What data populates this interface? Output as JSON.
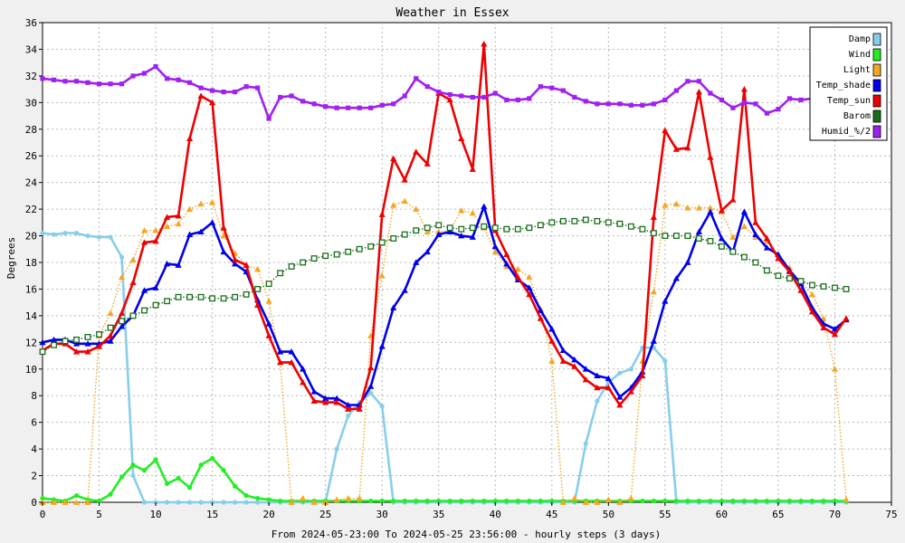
{
  "chart_data": {
    "type": "line",
    "title": "Weather in Essex",
    "ylabel": "Degrees",
    "xlabel": "From 2024-05-23:00 To 2024-05-25 23:56:00 - hourly steps (3 days)",
    "xlim": [
      0,
      75
    ],
    "ylim": [
      0,
      36
    ],
    "xticks": [
      0,
      5,
      10,
      15,
      20,
      25,
      30,
      35,
      40,
      45,
      50,
      55,
      60,
      65,
      70,
      75
    ],
    "yticks": [
      0,
      2,
      4,
      6,
      8,
      10,
      12,
      14,
      16,
      18,
      20,
      22,
      24,
      26,
      28,
      30,
      32,
      34,
      36
    ],
    "grid": true,
    "legend_position": "top-right",
    "x": [
      0,
      1,
      2,
      3,
      4,
      5,
      6,
      7,
      8,
      9,
      10,
      11,
      12,
      13,
      14,
      15,
      16,
      17,
      18,
      19,
      20,
      21,
      22,
      23,
      24,
      25,
      26,
      27,
      28,
      29,
      30,
      31,
      32,
      33,
      34,
      35,
      36,
      37,
      38,
      39,
      40,
      41,
      42,
      43,
      44,
      45,
      46,
      47,
      48,
      49,
      50,
      51,
      52,
      53,
      54,
      55,
      56,
      57,
      58,
      59,
      60,
      61,
      62,
      63,
      64,
      65,
      66,
      67,
      68,
      69,
      70,
      71
    ],
    "series": [
      {
        "name": "Damp",
        "color": "#87ceeb",
        "style": "solid-circle",
        "values": [
          20.2,
          20.1,
          20.2,
          20.2,
          20,
          19.9,
          19.9,
          18.4,
          2,
          0,
          0,
          0,
          0,
          0,
          0,
          0,
          0,
          0,
          0,
          0,
          0,
          0,
          0,
          0,
          0,
          0,
          4,
          6.5,
          7.5,
          8.2,
          7.2,
          0,
          0,
          0,
          0,
          0,
          0,
          0,
          0,
          0,
          0,
          0,
          0,
          0,
          0,
          0,
          0,
          0,
          4.4,
          7.6,
          9,
          9.7,
          10,
          11.6,
          11.6,
          10.6,
          0,
          0,
          0,
          0,
          0,
          0,
          0,
          0,
          0,
          0,
          0,
          0,
          0,
          0,
          0,
          0
        ]
      },
      {
        "name": "Wind",
        "color": "#22ee22",
        "style": "solid-circle",
        "values": [
          0.3,
          0.2,
          0.1,
          0.5,
          0.2,
          0.1,
          0.6,
          1.9,
          2.8,
          2.4,
          3.2,
          1.4,
          1.8,
          1.1,
          2.8,
          3.3,
          2.4,
          1.2,
          0.5,
          0.3,
          0.2,
          0.1,
          0.1,
          0.1,
          0.1,
          0.1,
          0.1,
          0.1,
          0.1,
          0.1,
          0.1,
          0.1,
          0.1,
          0.1,
          0.1,
          0.1,
          0.1,
          0.1,
          0.1,
          0.1,
          0.1,
          0.1,
          0.1,
          0.1,
          0.1,
          0.1,
          0.1,
          0.1,
          0.1,
          0.1,
          0.1,
          0.1,
          0.1,
          0.1,
          0.1,
          0.1,
          0.1,
          0.1,
          0.1,
          0.1,
          0.1,
          0.1,
          0.1,
          0.1,
          0.1,
          0.1,
          0.1,
          0.1,
          0.1,
          0.1,
          0.1,
          0.1
        ]
      },
      {
        "name": "Light",
        "color": "#f5a623",
        "style": "dotted-triangle",
        "values": [
          0,
          0,
          0,
          0,
          0,
          12.5,
          14.2,
          16.9,
          18.2,
          20.4,
          20.4,
          20.7,
          20.9,
          22,
          22.4,
          22.5,
          20,
          18.7,
          17.8,
          17.5,
          15.1,
          10.5,
          0,
          0.3,
          0,
          0,
          0.2,
          0.3,
          0.3,
          12.5,
          17,
          22.3,
          22.6,
          22,
          20.3,
          20.3,
          20.4,
          21.9,
          21.7,
          20.6,
          18.8,
          17.7,
          17.5,
          16.9,
          14.5,
          10.6,
          0,
          0.3,
          0,
          0,
          0.2,
          0,
          0.3,
          10.6,
          15.8,
          22.3,
          22.4,
          22.1,
          22.1,
          22.1,
          21.8,
          19.9,
          20.7,
          19.9,
          19.6,
          18.6,
          17.6,
          16.5,
          15.6,
          13.8,
          10,
          0.2
        ]
      },
      {
        "name": "Temp_shade",
        "color": "#0000ee",
        "style": "solid-triangle",
        "values": [
          12,
          12.2,
          12.2,
          11.9,
          11.9,
          11.9,
          12.1,
          13.2,
          14,
          15.9,
          16.1,
          17.9,
          17.8,
          20.1,
          20.3,
          21,
          18.8,
          17.9,
          17.3,
          15.2,
          13.4,
          11.3,
          11.3,
          10,
          8.3,
          7.8,
          7.8,
          7.3,
          7.3,
          8.7,
          11.7,
          14.6,
          15.9,
          18,
          18.8,
          20.1,
          20.3,
          20,
          19.9,
          22.2,
          19.2,
          17.9,
          16.7,
          16.1,
          14.4,
          13,
          11.4,
          10.7,
          10,
          9.5,
          9.3,
          7.9,
          8.6,
          9.8,
          12.1,
          15.1,
          16.8,
          18,
          20.3,
          21.8,
          19.8,
          18.8,
          21.8,
          20.1,
          19.1,
          18.6,
          17.4,
          16.4,
          14.6,
          13.4,
          13,
          13.7
        ]
      },
      {
        "name": "Temp_sun",
        "color": "#ee0000",
        "style": "solid-triangle",
        "values": [
          11.4,
          11.9,
          11.9,
          11.3,
          11.3,
          11.7,
          12.5,
          14.2,
          16.5,
          19.5,
          19.6,
          21.4,
          21.5,
          27.3,
          30.5,
          30,
          20.6,
          18.2,
          17.8,
          14.8,
          12.5,
          10.5,
          10.5,
          9,
          7.6,
          7.5,
          7.5,
          7,
          7,
          10.1,
          21.6,
          25.8,
          24.2,
          26.3,
          25.4,
          30.7,
          30.2,
          27.3,
          25,
          34.4,
          20.4,
          18.6,
          16.9,
          15.6,
          13.8,
          12.1,
          10.6,
          10.2,
          9.2,
          8.6,
          8.6,
          7.3,
          8.3,
          9.5,
          21.4,
          27.9,
          26.5,
          26.6,
          30.8,
          25.9,
          21.9,
          22.7,
          31,
          21,
          19.8,
          18.3,
          17.3,
          15.9,
          14.3,
          13.1,
          12.6,
          13.8
        ]
      },
      {
        "name": "Barom",
        "color": "#1a6e1a",
        "style": "dotted-square",
        "values": [
          11.3,
          11.8,
          12.1,
          12.2,
          12.4,
          12.6,
          13.1,
          13.6,
          14,
          14.4,
          14.8,
          15.1,
          15.4,
          15.4,
          15.4,
          15.3,
          15.3,
          15.4,
          15.6,
          16,
          16.4,
          17.2,
          17.7,
          18,
          18.3,
          18.5,
          18.6,
          18.8,
          19,
          19.2,
          19.5,
          19.8,
          20.1,
          20.4,
          20.6,
          20.8,
          20.6,
          20.5,
          20.6,
          20.7,
          20.6,
          20.5,
          20.5,
          20.6,
          20.8,
          21,
          21.1,
          21.1,
          21.2,
          21.1,
          21,
          20.9,
          20.7,
          20.5,
          20.2,
          20,
          20,
          20,
          19.8,
          19.6,
          19.2,
          18.8,
          18.4,
          18,
          17.4,
          17,
          16.8,
          16.6,
          16.3,
          16.2,
          16.1,
          16
        ]
      },
      {
        "name": "Humid_%/2",
        "color": "#a020f0",
        "style": "solid-square",
        "values": [
          31.8,
          31.7,
          31.6,
          31.6,
          31.5,
          31.4,
          31.4,
          31.4,
          32,
          32.2,
          32.7,
          31.8,
          31.7,
          31.5,
          31.1,
          30.9,
          30.8,
          30.8,
          31.2,
          31.1,
          28.8,
          30.4,
          30.5,
          30.1,
          29.9,
          29.7,
          29.6,
          29.6,
          29.6,
          29.6,
          29.8,
          29.9,
          30.5,
          31.8,
          31.2,
          30.8,
          30.6,
          30.5,
          30.4,
          30.4,
          30.7,
          30.2,
          30.2,
          30.3,
          31.2,
          31.1,
          30.9,
          30.4,
          30.1,
          29.9,
          29.9,
          29.9,
          29.8,
          29.8,
          29.9,
          30.2,
          30.9,
          31.6,
          31.6,
          30.7,
          30.2,
          29.6,
          30,
          29.9,
          29.2,
          29.5,
          30.3,
          30.2,
          30.3,
          30.2,
          30,
          30
        ]
      }
    ]
  }
}
